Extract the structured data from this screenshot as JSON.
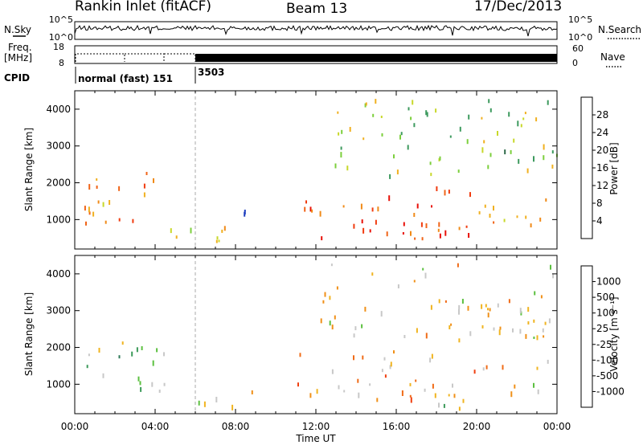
{
  "header": {
    "station": "Rankin Inlet (fitACF)",
    "beam": "Beam 13",
    "date": "17/Dec/2013"
  },
  "noise_panel": {
    "left_label": "N.Sky",
    "right_label": "N.Search",
    "left_ticks": [
      "10^5",
      "10^0"
    ],
    "right_ticks": [
      "10^5",
      "10^0"
    ]
  },
  "freq_panel": {
    "left_label_line1": "Freq.",
    "left_label_line2": "[MHz]",
    "right_label": "Nave",
    "left_ticks": [
      "18",
      "8"
    ],
    "right_ticks": [
      "60",
      "0"
    ]
  },
  "cpid_panel": {
    "label": "CPID",
    "segments": [
      {
        "name": "normal (fast) 151",
        "start_hour": 0.0,
        "end_hour": 6.0
      },
      {
        "name": "3503",
        "start_hour": 6.0,
        "end_hour": 24.0
      }
    ]
  },
  "x_axis": {
    "label": "Time UT",
    "ticks": [
      "00:00",
      "04:00",
      "08:00",
      "12:00",
      "16:00",
      "20:00",
      "00:00"
    ]
  },
  "y_axis": {
    "label": "Slant Range [km]",
    "ticks": [
      "1000",
      "2000",
      "3000",
      "4000"
    ]
  },
  "power_colorbar": {
    "label": "Power [dB]",
    "ticks": [
      "28",
      "24",
      "20",
      "16",
      "12",
      "8",
      "4"
    ],
    "colors": [
      "#0000f0",
      "#2040c0",
      "#2f6a4a",
      "#3d9a5e",
      "#7ccf3c",
      "#c8d82a",
      "#f0b020",
      "#f08a18",
      "#f06418",
      "#f03c10",
      "#e81008"
    ]
  },
  "velocity_colorbar": {
    "label": "Velocity [m s⁻¹]",
    "ticks": [
      "1000",
      "500",
      "100",
      "25",
      "-25",
      "-100",
      "-500",
      "-1000"
    ],
    "colors": [
      "#1830a8",
      "#2a5aa8",
      "#2f7a5a",
      "#3c9a5a",
      "#5cc040",
      "#c8c8c8",
      "#f0b420",
      "#f09018",
      "#f06c18",
      "#f04010",
      "#e81008"
    ]
  },
  "chart_data": [
    {
      "type": "heatmap",
      "title": "Power",
      "xlabel": "Time UT",
      "ylabel": "Slant Range [km]",
      "xlim": [
        0,
        24
      ],
      "ylim": [
        200,
        4500
      ],
      "colorbar_label": "Power [dB]",
      "colorbar_range": [
        0,
        32
      ],
      "colorbar_ticks": [
        4,
        8,
        12,
        16,
        20,
        24,
        28
      ],
      "scatter_regions": [
        {
          "t_start": 0.0,
          "t_end": 5.0,
          "range_low": 700,
          "range_high": 2300,
          "value": 22
        },
        {
          "t_start": 5.0,
          "t_end": 6.0,
          "range_low": 400,
          "range_high": 1000,
          "value": 14
        },
        {
          "t_start": 6.0,
          "t_end": 10.0,
          "range_low": 400,
          "range_high": 900,
          "value": 18
        },
        {
          "t_start": 6.5,
          "t_end": 8.5,
          "range_low": 1100,
          "range_high": 1400,
          "value": 10
        },
        {
          "t_start": 11.0,
          "t_end": 20.0,
          "range_low": 500,
          "range_high": 2000,
          "value": 26
        },
        {
          "t_start": 17.0,
          "t_end": 20.0,
          "range_low": 400,
          "range_high": 900,
          "value": 30
        },
        {
          "t_start": 20.0,
          "t_end": 24.0,
          "range_low": 600,
          "range_high": 1700,
          "value": 20
        },
        {
          "t_start": 12.0,
          "t_end": 24.0,
          "range_low": 2200,
          "range_high": 4300,
          "value": 14
        }
      ]
    },
    {
      "type": "heatmap",
      "title": "Velocity",
      "xlabel": "Time UT",
      "ylabel": "Slant Range [km]",
      "xlim": [
        0,
        24
      ],
      "ylim": [
        200,
        4500
      ],
      "colorbar_label": "Velocity [m s⁻¹]",
      "colorbar_ticks": [
        1000,
        500,
        100,
        25,
        -25,
        -100,
        -500,
        -1000
      ],
      "scatter_regions": [
        {
          "t_start": 0.0,
          "t_end": 5.0,
          "range_low": 800,
          "range_high": 2200,
          "value": 150
        },
        {
          "t_start": 6.0,
          "t_end": 10.0,
          "range_low": 400,
          "range_high": 900,
          "value": -200
        },
        {
          "t_start": 11.0,
          "t_end": 20.0,
          "range_low": 600,
          "range_high": 2000,
          "value": -300
        },
        {
          "t_start": 17.0,
          "t_end": 21.0,
          "range_low": 300,
          "range_high": 800,
          "value": 80
        },
        {
          "t_start": 20.0,
          "t_end": 24.0,
          "range_low": 800,
          "range_high": 1700,
          "value": -200
        },
        {
          "t_start": 12.0,
          "t_end": 24.0,
          "range_low": 2200,
          "range_high": 4300,
          "value": -150
        }
      ]
    }
  ]
}
